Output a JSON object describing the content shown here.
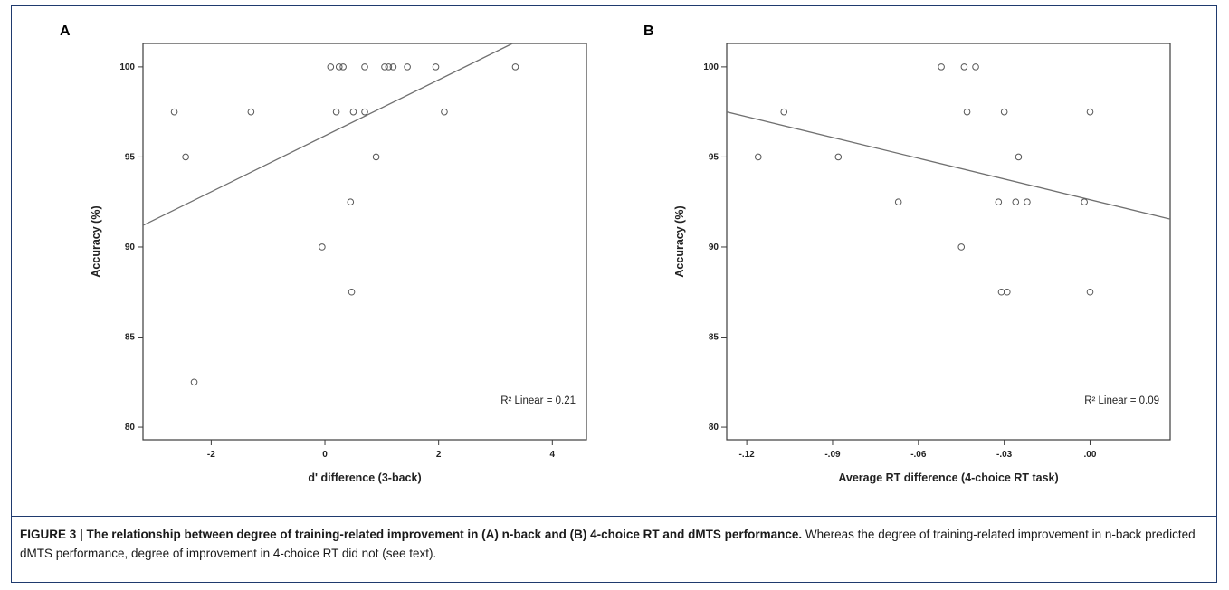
{
  "figure": {
    "caption_title": "FIGURE 3 | The relationship between degree of training-related improvement in (A) n-back and (B) 4-choice RT and dMTS performance.",
    "caption_text": " Whereas the degree of training-related improvement in n-back predicted dMTS performance, degree of improvement in 4-choice RT did not (see text)."
  },
  "colors": {
    "frame": "#1f3a6e",
    "axis": "#3c3c3c",
    "point": "#555555",
    "fit": "#707070"
  },
  "chart_data": [
    {
      "panel": "A",
      "type": "scatter",
      "xlabel": "d' difference (3-back)",
      "ylabel": "Accuracy (%)",
      "xlim": [
        -3.2,
        4.6
      ],
      "ylim": [
        79.3,
        101.3
      ],
      "xticks": [
        -2,
        0,
        2,
        4
      ],
      "xtick_labels": [
        "-2",
        "0",
        "2",
        "4"
      ],
      "yticks": [
        80,
        85,
        90,
        95,
        100
      ],
      "ytick_labels": [
        "80",
        "85",
        "90",
        "95",
        "100"
      ],
      "annotation": "R² Linear = 0.21",
      "fit_line": {
        "x": [
          -3.2,
          3.3
        ],
        "y": [
          91.2,
          101.3
        ]
      },
      "points": [
        {
          "x": -2.65,
          "y": 97.5
        },
        {
          "x": -2.45,
          "y": 95
        },
        {
          "x": -2.3,
          "y": 82.5
        },
        {
          "x": -1.3,
          "y": 97.5
        },
        {
          "x": -0.05,
          "y": 90
        },
        {
          "x": 0.1,
          "y": 100
        },
        {
          "x": 0.2,
          "y": 97.5
        },
        {
          "x": 0.25,
          "y": 100
        },
        {
          "x": 0.32,
          "y": 100
        },
        {
          "x": 0.45,
          "y": 92.5
        },
        {
          "x": 0.47,
          "y": 87.5
        },
        {
          "x": 0.5,
          "y": 97.5
        },
        {
          "x": 0.7,
          "y": 100
        },
        {
          "x": 0.7,
          "y": 97.5
        },
        {
          "x": 0.9,
          "y": 95
        },
        {
          "x": 1.05,
          "y": 100
        },
        {
          "x": 1.12,
          "y": 100
        },
        {
          "x": 1.2,
          "y": 100
        },
        {
          "x": 1.45,
          "y": 100
        },
        {
          "x": 1.95,
          "y": 100
        },
        {
          "x": 2.1,
          "y": 97.5
        },
        {
          "x": 3.35,
          "y": 100
        }
      ]
    },
    {
      "panel": "B",
      "type": "scatter",
      "xlabel": "Average RT difference (4-choice RT task)",
      "ylabel": "Accuracy (%)",
      "xlim": [
        -0.127,
        0.028
      ],
      "ylim": [
        79.3,
        101.3
      ],
      "xticks": [
        -0.12,
        -0.09,
        -0.06,
        -0.03,
        0.0
      ],
      "xtick_labels": [
        "-.12",
        "-.09",
        "-.06",
        "-.03",
        ".00"
      ],
      "yticks": [
        80,
        85,
        90,
        95,
        100
      ],
      "ytick_labels": [
        "80",
        "85",
        "90",
        "95",
        "100"
      ],
      "annotation": "R² Linear = 0.09",
      "fit_line": {
        "x": [
          -0.127,
          0.028
        ],
        "y": [
          97.5,
          91.55
        ]
      },
      "points": [
        {
          "x": -0.116,
          "y": 95
        },
        {
          "x": -0.107,
          "y": 97.5
        },
        {
          "x": -0.088,
          "y": 95
        },
        {
          "x": -0.067,
          "y": 92.5
        },
        {
          "x": -0.052,
          "y": 100
        },
        {
          "x": -0.045,
          "y": 90
        },
        {
          "x": -0.044,
          "y": 100
        },
        {
          "x": -0.043,
          "y": 97.5
        },
        {
          "x": -0.04,
          "y": 100
        },
        {
          "x": -0.032,
          "y": 92.5
        },
        {
          "x": -0.031,
          "y": 87.5
        },
        {
          "x": -0.03,
          "y": 97.5
        },
        {
          "x": -0.029,
          "y": 87.5
        },
        {
          "x": -0.026,
          "y": 92.5
        },
        {
          "x": -0.025,
          "y": 95
        },
        {
          "x": -0.022,
          "y": 92.5
        },
        {
          "x": -0.002,
          "y": 92.5
        },
        {
          "x": 0.0,
          "y": 97.5
        },
        {
          "x": 0.0,
          "y": 87.5
        }
      ]
    }
  ]
}
